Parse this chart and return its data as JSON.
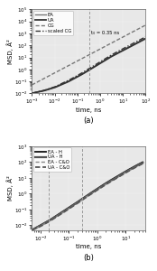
{
  "panel_a": {
    "title": "(a)",
    "xlabel": "time, ns",
    "ylabel": "MSD, Å²",
    "xlim_log": [
      -3,
      2
    ],
    "ylim_log": [
      -2,
      5
    ],
    "vline": 0.35,
    "vline_label": "t₀ = 0.35 ns",
    "series": [
      {
        "label": "EA",
        "style": "solid",
        "color": "#777777",
        "lw": 1.0,
        "x_log": [
          -3.0,
          -2.5,
          -2.0,
          -1.7,
          -1.4,
          -1.1,
          -0.8,
          -0.5,
          -0.2,
          0.1,
          0.4,
          0.7,
          1.0,
          1.3,
          1.6,
          2.0
        ],
        "y_log": [
          -2.0,
          -1.8,
          -1.5,
          -1.25,
          -1.0,
          -0.7,
          -0.4,
          -0.05,
          0.3,
          0.65,
          1.0,
          1.3,
          1.6,
          1.9,
          2.2,
          2.6
        ]
      },
      {
        "label": "UA",
        "style": "solid",
        "color": "#333333",
        "lw": 1.3,
        "x_log": [
          -3.0,
          -2.5,
          -2.0,
          -1.7,
          -1.4,
          -1.1,
          -0.8,
          -0.5,
          -0.2,
          0.1,
          0.4,
          0.7,
          1.0,
          1.3,
          1.6,
          2.0
        ],
        "y_log": [
          -2.0,
          -1.8,
          -1.52,
          -1.28,
          -1.03,
          -0.73,
          -0.42,
          -0.08,
          0.27,
          0.62,
          0.97,
          1.28,
          1.57,
          1.87,
          2.17,
          2.57
        ]
      },
      {
        "label": "CG",
        "style": "dashed",
        "color": "#777777",
        "lw": 1.0,
        "x_log": [
          -3.0,
          -2.5,
          -2.0,
          -1.5,
          -1.0,
          -0.5,
          0.0,
          0.5,
          1.0,
          1.5,
          2.0
        ],
        "y_log": [
          -1.3,
          -0.8,
          -0.3,
          0.2,
          0.7,
          1.2,
          1.7,
          2.2,
          2.7,
          3.2,
          3.7
        ]
      },
      {
        "label": "scaled CG",
        "style": "dashdot",
        "color": "#333333",
        "lw": 1.0,
        "x_log": [
          -3.0,
          -2.5,
          -2.0,
          -1.7,
          -1.4,
          -1.1,
          -0.8,
          -0.5,
          -0.2,
          0.1,
          0.4,
          0.7,
          1.0,
          1.3,
          1.6,
          2.0
        ],
        "y_log": [
          -2.0,
          -1.78,
          -1.47,
          -1.2,
          -0.93,
          -0.62,
          -0.3,
          0.05,
          0.4,
          0.75,
          1.1,
          1.42,
          1.72,
          2.02,
          2.32,
          2.72
        ]
      }
    ]
  },
  "panel_b": {
    "title": "(b)",
    "xlabel": "time, ns",
    "ylabel": "MSD, Å²",
    "xlim_log": [
      -2.3,
      1.7
    ],
    "ylim_log": [
      -2.3,
      3.0
    ],
    "vlines": [
      0.02,
      0.3
    ],
    "series": [
      {
        "label": "EA - H",
        "style": "solid",
        "color": "#111111",
        "lw": 1.3,
        "x_log": [
          -2.3,
          -2.0,
          -1.7,
          -1.4,
          -1.1,
          -0.8,
          -0.5,
          -0.2,
          0.1,
          0.4,
          0.7,
          1.0,
          1.3,
          1.6
        ],
        "y_log": [
          -2.3,
          -2.0,
          -1.7,
          -1.35,
          -1.0,
          -0.65,
          -0.28,
          0.08,
          0.44,
          0.78,
          1.1,
          1.42,
          1.72,
          2.0
        ]
      },
      {
        "label": "UA - H",
        "style": "solid",
        "color": "#555555",
        "lw": 1.6,
        "x_log": [
          -2.3,
          -2.0,
          -1.7,
          -1.4,
          -1.1,
          -0.8,
          -0.5,
          -0.2,
          0.1,
          0.4,
          0.7,
          1.0,
          1.3,
          1.6
        ],
        "y_log": [
          -2.3,
          -2.02,
          -1.72,
          -1.38,
          -1.03,
          -0.68,
          -0.31,
          0.05,
          0.4,
          0.74,
          1.06,
          1.38,
          1.68,
          1.96
        ]
      },
      {
        "label": "EA - C&O",
        "style": "dashed",
        "color": "#888888",
        "lw": 1.0,
        "x_log": [
          -2.3,
          -2.0,
          -1.7,
          -1.4,
          -1.1,
          -0.8,
          -0.5,
          -0.2,
          0.1,
          0.4,
          0.7,
          1.0,
          1.3,
          1.6
        ],
        "y_log": [
          -2.3,
          -2.05,
          -1.75,
          -1.41,
          -1.06,
          -0.71,
          -0.34,
          0.02,
          0.37,
          0.71,
          1.03,
          1.35,
          1.65,
          1.93
        ]
      },
      {
        "label": "UA - C&O",
        "style": "dashed",
        "color": "#555555",
        "lw": 1.3,
        "x_log": [
          -2.3,
          -2.0,
          -1.7,
          -1.4,
          -1.1,
          -0.8,
          -0.5,
          -0.2,
          0.1,
          0.4,
          0.7,
          1.0,
          1.3,
          1.6
        ],
        "y_log": [
          -2.3,
          -2.07,
          -1.77,
          -1.43,
          -1.08,
          -0.73,
          -0.36,
          0.0,
          0.35,
          0.69,
          1.01,
          1.33,
          1.63,
          1.91
        ]
      }
    ]
  },
  "face_color": "#e8e8e8",
  "grid_color": "#ffffff"
}
